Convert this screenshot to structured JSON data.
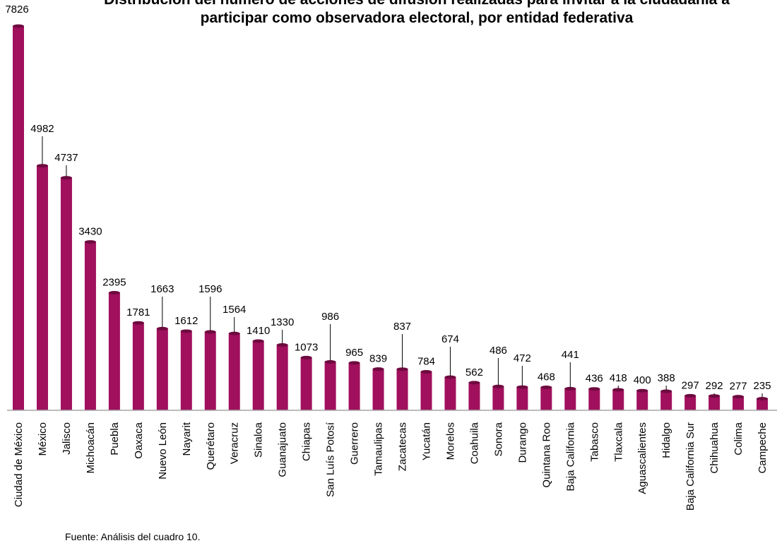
{
  "chart_data": {
    "type": "bar",
    "title": "Distribución del número de acciones de difusión realizadas para invitar a la ciudadanía a participar como observadora electoral, por entidad federativa",
    "source": "Fuente: Análisis del cuadro 10.",
    "categories": [
      "Ciudad de México",
      "México",
      "Jalisco",
      "Michoacán",
      "Puebla",
      "Oaxaca",
      "Nuevo León",
      "Nayarit",
      "Querétaro",
      "Veracruz",
      "Sinaloa",
      "Guanajuato",
      "Chiapas",
      "San Luís Potosí",
      "Guerrero",
      "Tamaulipas",
      "Zacatecas",
      "Yucatán",
      "Morelos",
      "Coahuila",
      "Sonora",
      "Durango",
      "Quintana Roo",
      "Baja California",
      "Tabasco",
      "Tlaxcala",
      "Aguascalientes",
      "Hidalgo",
      "Baja California Sur",
      "Chihuahua",
      "Colima",
      "Campeche"
    ],
    "values": [
      7826,
      4982,
      4737,
      3430,
      2395,
      1781,
      1663,
      1612,
      1596,
      1564,
      1410,
      1330,
      1073,
      986,
      965,
      839,
      837,
      784,
      674,
      562,
      486,
      472,
      468,
      441,
      436,
      418,
      400,
      388,
      297,
      292,
      277,
      235
    ],
    "ylim": [
      0,
      7826
    ],
    "bar_color": "#a0105c",
    "grid": false
  }
}
